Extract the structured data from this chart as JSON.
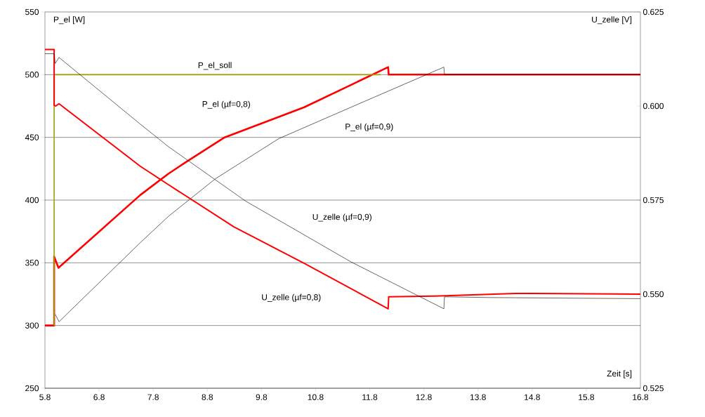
{
  "chart_data": {
    "type": "line",
    "xlabel": "Zeit [s]",
    "ylabel": "P_el [W]",
    "y2label": "U_zelle [V]",
    "xlim": [
      5.8,
      16.8
    ],
    "xticks": [
      5.8,
      6.8,
      7.8,
      8.8,
      9.8,
      10.8,
      11.8,
      12.8,
      13.8,
      14.8,
      15.8,
      16.8
    ],
    "ylim": [
      250,
      550
    ],
    "yticks": [
      250,
      300,
      350,
      400,
      450,
      500,
      550
    ],
    "y2lim": [
      0.525,
      0.625
    ],
    "y2ticks": [
      {
        "value": 0.525,
        "label": "0.525"
      },
      {
        "value": 0.55,
        "label": "0.550"
      },
      {
        "value": 0.575,
        "label": "0.575"
      },
      {
        "value": 0.6,
        "label": "0.600"
      },
      {
        "value": 0.625,
        "label": "0.625"
      }
    ],
    "grid": "y",
    "series": [
      {
        "name": "P_el (µf=0,8)",
        "color": "#ff0000",
        "x": [
          5.8,
          5.97,
          5.97,
          6.05,
          7.56,
          8.08,
          8.43,
          9.12,
          10.59,
          12.14,
          12.15,
          16.8
        ],
        "values": [
          300,
          300,
          355,
          346,
          404,
          421,
          431,
          450,
          474,
          506,
          500,
          500
        ]
      },
      {
        "name": "P_el (µf=0,9)",
        "color": "#000000",
        "x": [
          5.99,
          6.06,
          7.56,
          8.08,
          8.95,
          10.12,
          11.88,
          13.17,
          13.18,
          16.8
        ],
        "values": [
          309,
          303,
          366,
          387,
          417,
          449,
          482,
          506,
          500,
          500
        ]
      },
      {
        "name": "P_el_soll",
        "color": "#a0a000",
        "x": [
          5.97,
          5.97,
          12.0
        ],
        "values": [
          300,
          500,
          500
        ]
      },
      {
        "name": "U_zelle (µf=0,8)",
        "color": "#ff0000",
        "axis": "y2",
        "x": [
          5.8,
          5.97,
          5.97,
          6.0,
          6.06,
          7.56,
          8.08,
          9.29,
          10.59,
          12.14,
          12.15,
          13.0,
          14.5,
          16.8
        ],
        "values": [
          0.615,
          0.615,
          0.6002,
          0.6,
          0.6006,
          0.584,
          0.5791,
          0.5679,
          0.5582,
          0.5461,
          0.5493,
          0.5495,
          0.5502,
          0.55
        ]
      },
      {
        "name": "U_zelle (µf=0,9)",
        "color": "#000000",
        "axis": "y2",
        "x": [
          5.8,
          5.97,
          5.99,
          6.06,
          7.56,
          8.08,
          9.51,
          11.45,
          13.17,
          13.18,
          14.0,
          16.8
        ],
        "values": [
          0.6139,
          0.6139,
          0.6113,
          0.6129,
          0.5952,
          0.5892,
          0.5747,
          0.5586,
          0.5461,
          0.5493,
          0.5491,
          0.5488
        ]
      }
    ]
  }
}
